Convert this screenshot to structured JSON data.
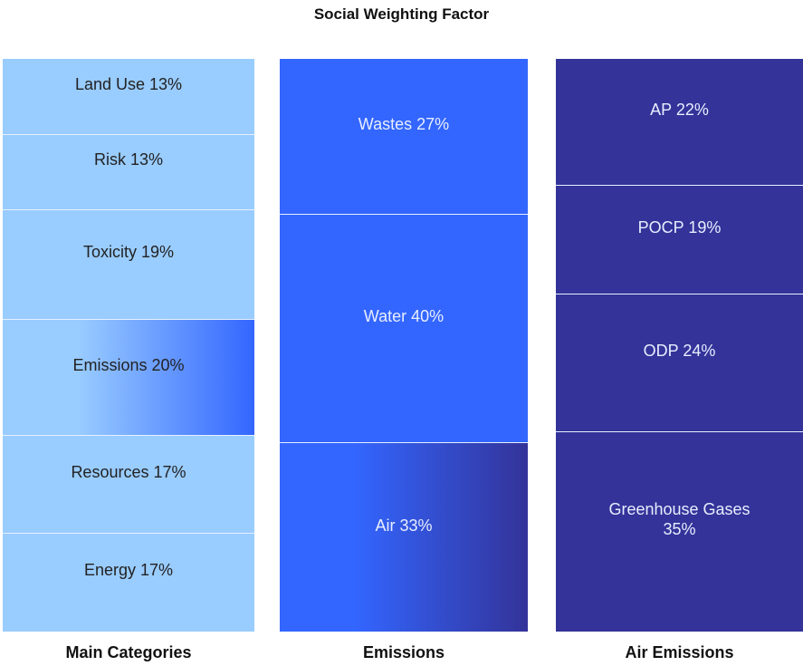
{
  "chart_data": {
    "type": "stacked_column",
    "title": "Social Weighting Factor",
    "columns": [
      {
        "name": "Main Categories",
        "color": "#99ccff",
        "text_color": "#222222",
        "expanded": 3,
        "labels": [
          "Land Use",
          "Risk",
          "Toxicity",
          "Emissions",
          "Resources",
          "Energy"
        ],
        "values": [
          13,
          13,
          19,
          20,
          17,
          17
        ],
        "value_labels": [
          "13%",
          "13%",
          "19%",
          "20%",
          "17%",
          "17%"
        ]
      },
      {
        "name": "Emissions",
        "color": "#3366ff",
        "text_color": "#e8eeff",
        "expanded": 2,
        "labels": [
          "Wastes",
          "Water",
          "Air"
        ],
        "values": [
          27,
          40,
          33
        ],
        "value_labels": [
          "27%",
          "40%",
          "33%"
        ]
      },
      {
        "name": "Air Emissions",
        "color": "#333399",
        "text_color": "#e8eeff",
        "labels": [
          "AP",
          "POCP",
          "ODP",
          "Greenhouse Gases"
        ],
        "values": [
          22,
          19,
          24,
          35
        ],
        "value_labels": [
          "22%",
          "19%",
          "24%",
          "35%"
        ]
      }
    ]
  }
}
